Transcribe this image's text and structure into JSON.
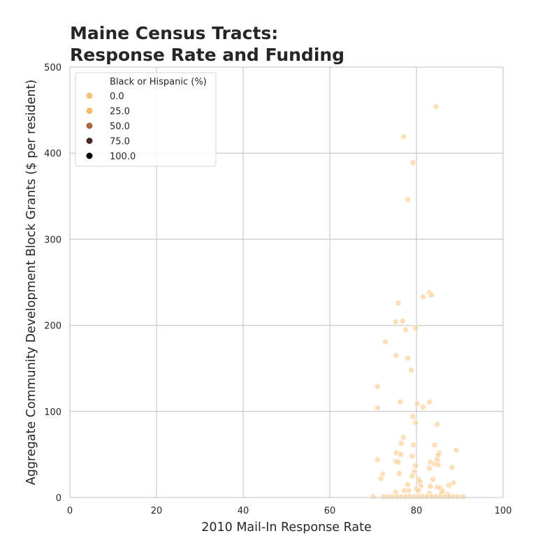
{
  "chart_data": {
    "type": "scatter",
    "title": [
      "Maine Census Tracts:",
      "Response Rate and Funding"
    ],
    "xlabel": "2010 Mail-In Response Rate",
    "ylabel": "Aggregate Community Development Block Grants ($ per resident)",
    "xlim": [
      0,
      100
    ],
    "ylim": [
      0,
      500
    ],
    "xticks": [
      0,
      20,
      40,
      60,
      80,
      100
    ],
    "yticks": [
      0,
      100,
      200,
      300,
      400,
      500
    ],
    "grid": true,
    "hue": {
      "title": "Black or Hispanic (%)",
      "levels": [
        {
          "label": "0.0",
          "color": "#f8c27a"
        },
        {
          "label": "25.0",
          "color": "#f7b96a"
        },
        {
          "label": "50.0",
          "color": "#a9683f"
        },
        {
          "label": "75.0",
          "color": "#4a2a1c"
        },
        {
          "label": "100.0",
          "color": "#000000"
        }
      ]
    },
    "legend_position": "top-left",
    "point_color": "#fcc98a",
    "points": [
      {
        "x": 84.5,
        "y": 454
      },
      {
        "x": 77.0,
        "y": 419
      },
      {
        "x": 79.2,
        "y": 389
      },
      {
        "x": 78.0,
        "y": 346
      },
      {
        "x": 83.0,
        "y": 238
      },
      {
        "x": 83.5,
        "y": 235
      },
      {
        "x": 81.5,
        "y": 233
      },
      {
        "x": 75.8,
        "y": 226
      },
      {
        "x": 76.8,
        "y": 205
      },
      {
        "x": 75.2,
        "y": 204
      },
      {
        "x": 79.8,
        "y": 197
      },
      {
        "x": 77.5,
        "y": 195
      },
      {
        "x": 72.8,
        "y": 181
      },
      {
        "x": 75.3,
        "y": 165
      },
      {
        "x": 78.0,
        "y": 162
      },
      {
        "x": 78.8,
        "y": 148
      },
      {
        "x": 71.0,
        "y": 129
      },
      {
        "x": 76.3,
        "y": 111
      },
      {
        "x": 83.0,
        "y": 111
      },
      {
        "x": 80.2,
        "y": 109
      },
      {
        "x": 81.5,
        "y": 105
      },
      {
        "x": 71.0,
        "y": 104
      },
      {
        "x": 79.2,
        "y": 94
      },
      {
        "x": 79.8,
        "y": 87
      },
      {
        "x": 84.8,
        "y": 85
      },
      {
        "x": 77.0,
        "y": 70
      },
      {
        "x": 76.5,
        "y": 63
      },
      {
        "x": 79.3,
        "y": 61
      },
      {
        "x": 84.2,
        "y": 61
      },
      {
        "x": 89.2,
        "y": 55
      },
      {
        "x": 75.4,
        "y": 52
      },
      {
        "x": 85.2,
        "y": 52
      },
      {
        "x": 85.0,
        "y": 49
      },
      {
        "x": 76.4,
        "y": 50
      },
      {
        "x": 79.0,
        "y": 48
      },
      {
        "x": 71.0,
        "y": 44
      },
      {
        "x": 84.8,
        "y": 44
      },
      {
        "x": 75.2,
        "y": 42
      },
      {
        "x": 75.8,
        "y": 41
      },
      {
        "x": 83.2,
        "y": 41
      },
      {
        "x": 84.2,
        "y": 39
      },
      {
        "x": 85.0,
        "y": 38
      },
      {
        "x": 79.8,
        "y": 37
      },
      {
        "x": 83.0,
        "y": 34
      },
      {
        "x": 88.2,
        "y": 35
      },
      {
        "x": 79.5,
        "y": 30
      },
      {
        "x": 76.0,
        "y": 28
      },
      {
        "x": 72.2,
        "y": 27
      },
      {
        "x": 79.0,
        "y": 25
      },
      {
        "x": 71.8,
        "y": 22
      },
      {
        "x": 80.5,
        "y": 21
      },
      {
        "x": 83.8,
        "y": 21
      },
      {
        "x": 80.8,
        "y": 18
      },
      {
        "x": 88.5,
        "y": 17
      },
      {
        "x": 78.0,
        "y": 15
      },
      {
        "x": 87.5,
        "y": 14
      },
      {
        "x": 81.0,
        "y": 13
      },
      {
        "x": 83.2,
        "y": 13
      },
      {
        "x": 84.8,
        "y": 12
      },
      {
        "x": 85.5,
        "y": 11
      },
      {
        "x": 80.0,
        "y": 10
      },
      {
        "x": 77.2,
        "y": 8
      },
      {
        "x": 78.2,
        "y": 8
      },
      {
        "x": 80.5,
        "y": 8
      },
      {
        "x": 86.0,
        "y": 8
      },
      {
        "x": 75.2,
        "y": 6
      },
      {
        "x": 83.0,
        "y": 5
      },
      {
        "x": 85.8,
        "y": 5
      },
      {
        "x": 87.2,
        "y": 4
      },
      {
        "x": 70.0,
        "y": 1
      },
      {
        "x": 72.5,
        "y": 1
      },
      {
        "x": 73.5,
        "y": 1
      },
      {
        "x": 74.5,
        "y": 1
      },
      {
        "x": 75.5,
        "y": 1
      },
      {
        "x": 76.5,
        "y": 1
      },
      {
        "x": 77.5,
        "y": 1
      },
      {
        "x": 78.5,
        "y": 1
      },
      {
        "x": 79.5,
        "y": 1
      },
      {
        "x": 80.5,
        "y": 1
      },
      {
        "x": 81.5,
        "y": 1
      },
      {
        "x": 82.5,
        "y": 1
      },
      {
        "x": 83.5,
        "y": 1
      },
      {
        "x": 84.5,
        "y": 1
      },
      {
        "x": 85.5,
        "y": 1
      },
      {
        "x": 86.5,
        "y": 1
      },
      {
        "x": 87.5,
        "y": 1
      },
      {
        "x": 88.5,
        "y": 1
      },
      {
        "x": 89.5,
        "y": 1
      },
      {
        "x": 90.8,
        "y": 1
      }
    ]
  }
}
